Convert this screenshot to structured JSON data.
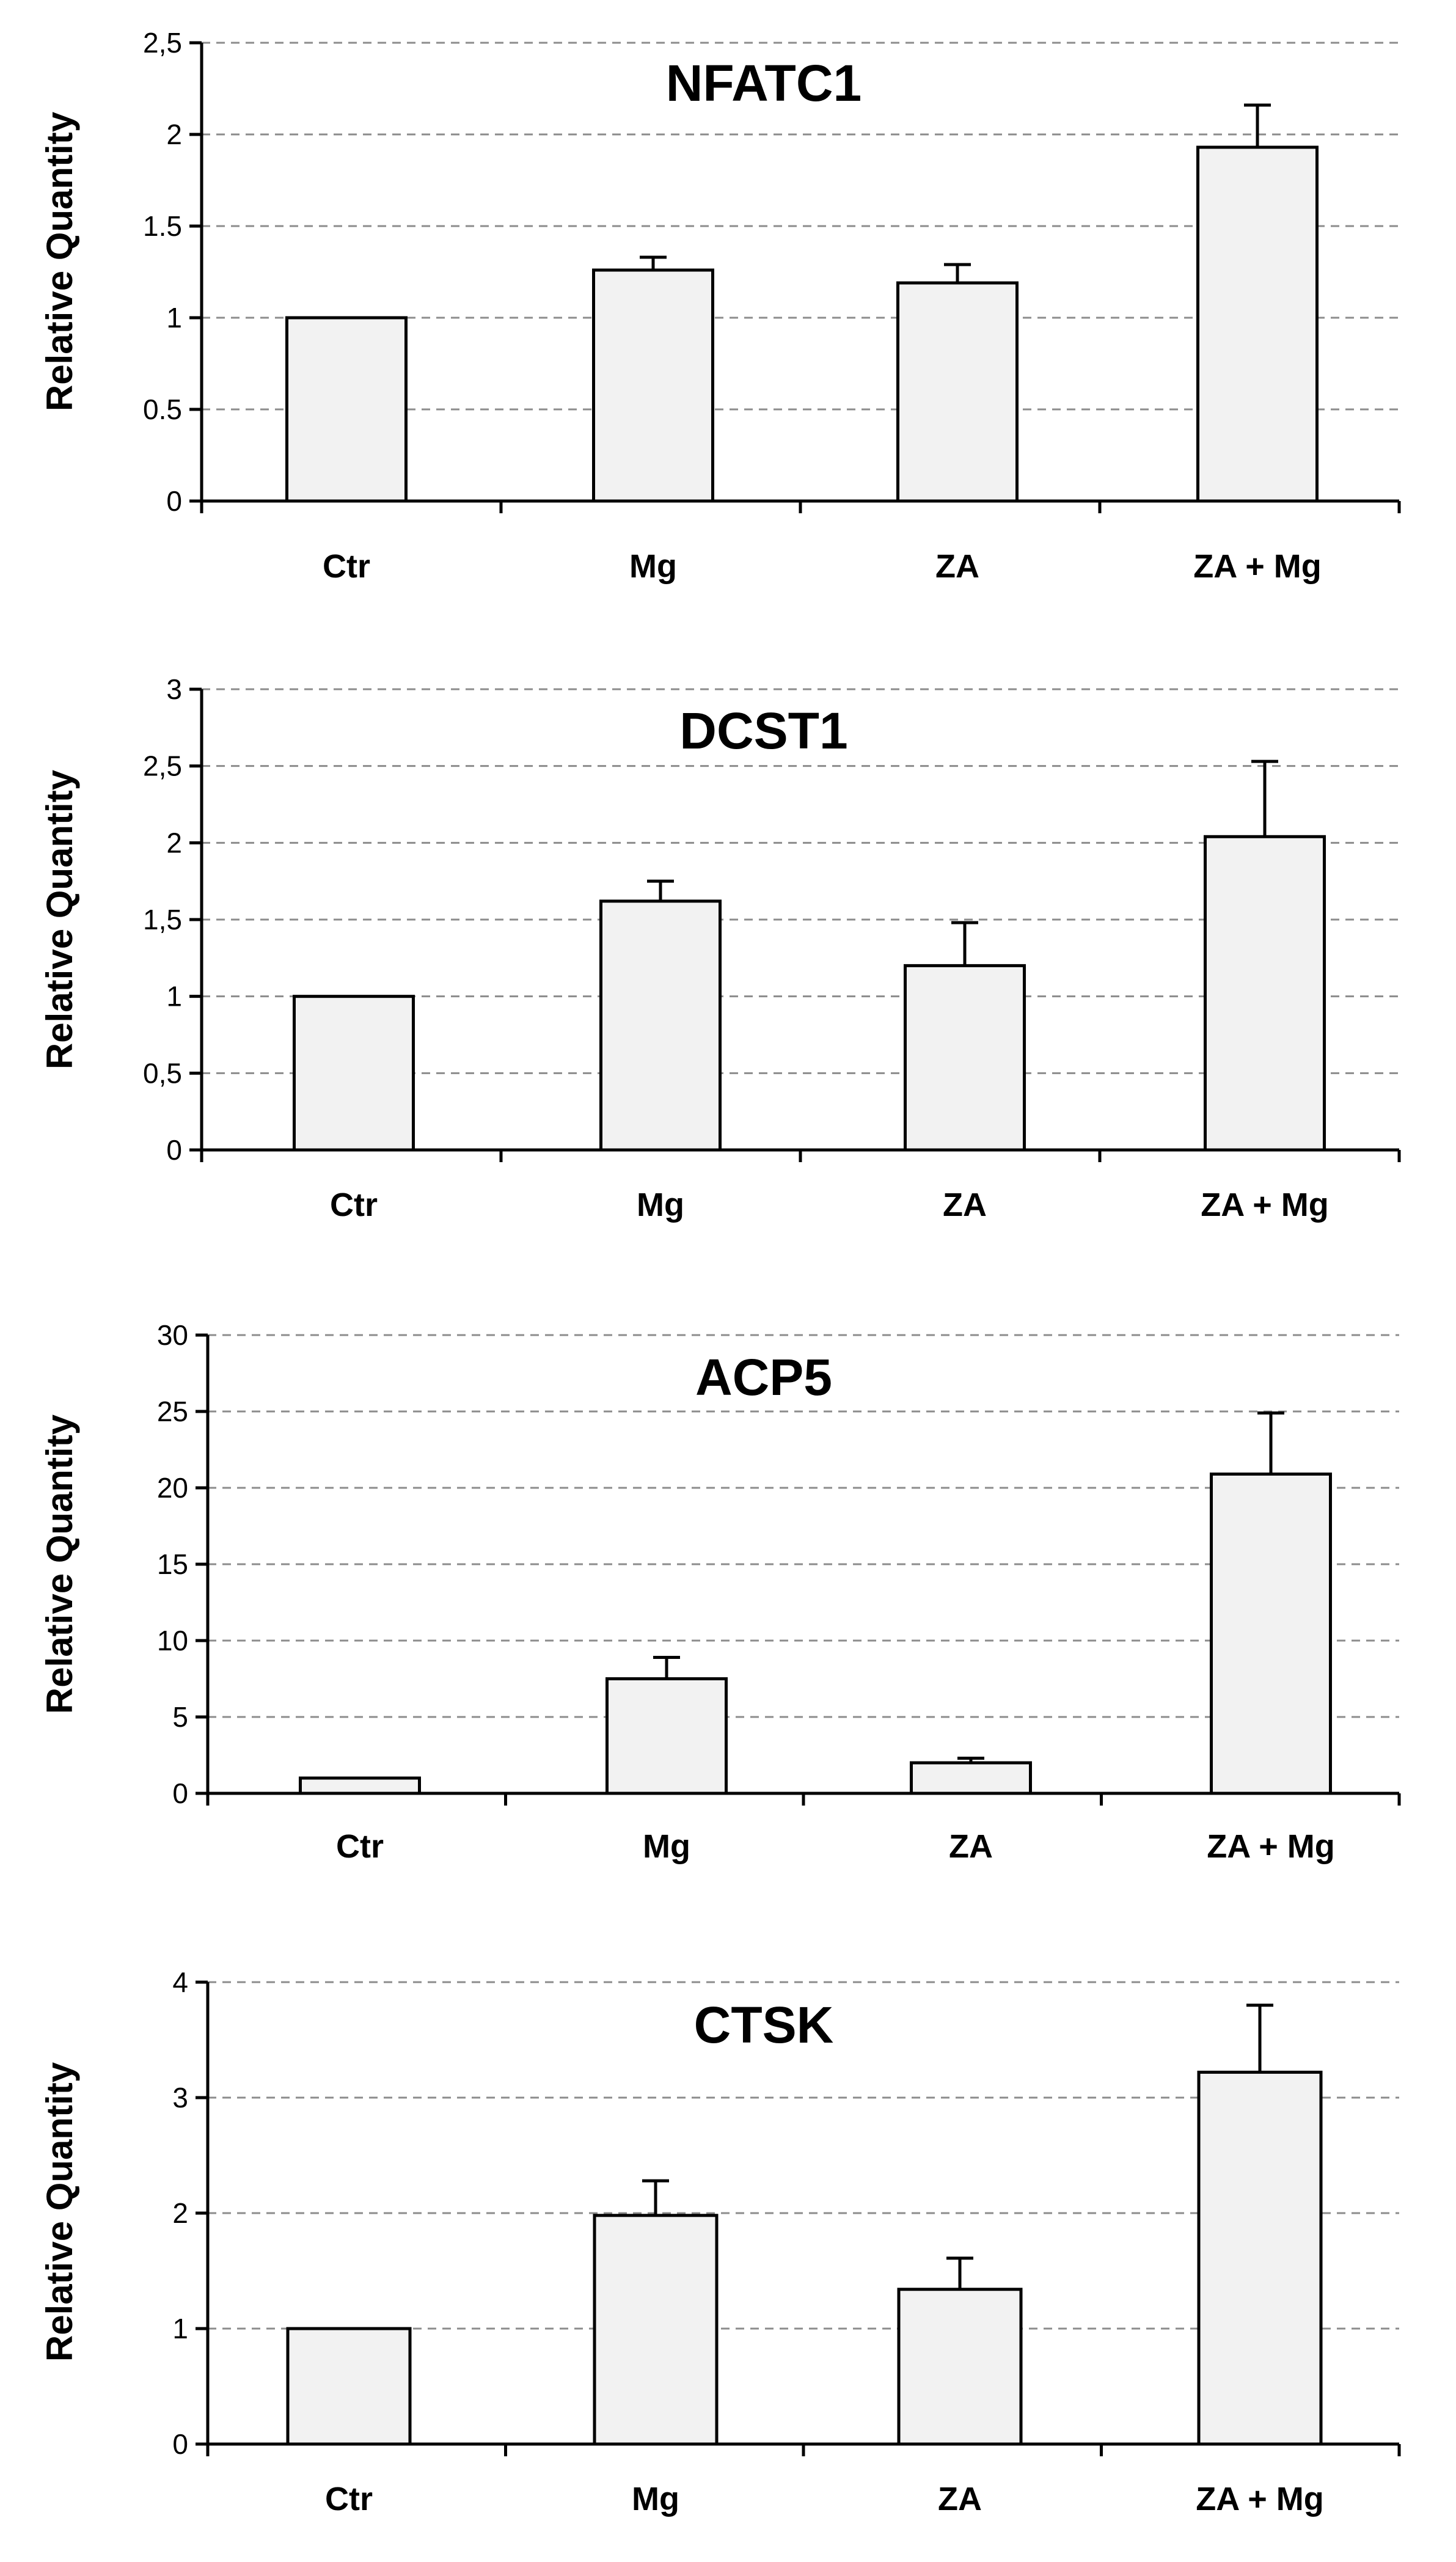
{
  "chart_data": [
    {
      "type": "bar",
      "title": "NFATC1",
      "ylabel": "Relative Quantity",
      "xlabel": "",
      "categories": [
        "Ctr",
        "Mg",
        "ZA",
        "ZA + Mg"
      ],
      "values": [
        1.0,
        1.26,
        1.19,
        1.93
      ],
      "error": [
        0,
        0.07,
        0.1,
        0.23
      ],
      "ylim": [
        0,
        2.5
      ],
      "yticks": [
        0,
        0.5,
        1,
        1.5,
        2,
        2.5
      ],
      "ytick_labels": [
        "0",
        "0.5",
        "1",
        "1.5",
        "2",
        "2,5"
      ],
      "grid": true,
      "bar_color": "#f2f2f2"
    },
    {
      "type": "bar",
      "title": "DCST1",
      "ylabel": "Relative Quantity",
      "xlabel": "",
      "categories": [
        "Ctr",
        "Mg",
        "ZA",
        "ZA + Mg"
      ],
      "values": [
        1.0,
        1.62,
        1.2,
        2.04
      ],
      "error": [
        0,
        0.13,
        0.28,
        0.49
      ],
      "ylim": [
        0,
        3
      ],
      "yticks": [
        0,
        0.5,
        1,
        1.5,
        2,
        2.5,
        3
      ],
      "ytick_labels": [
        "0",
        "0,5",
        "1",
        "1,5",
        "2",
        "2,5",
        "3"
      ],
      "grid": true,
      "bar_color": "#f2f2f2"
    },
    {
      "type": "bar",
      "title": "ACP5",
      "ylabel": "Relative Quantity",
      "xlabel": "",
      "categories": [
        "Ctr",
        "Mg",
        "ZA",
        "ZA + Mg"
      ],
      "values": [
        1.0,
        7.5,
        2.0,
        20.9
      ],
      "error": [
        0,
        1.4,
        0.3,
        4.0
      ],
      "ylim": [
        0,
        30
      ],
      "yticks": [
        0,
        5,
        10,
        15,
        20,
        25,
        30
      ],
      "ytick_labels": [
        "0",
        "5",
        "10",
        "15",
        "20",
        "25",
        "30"
      ],
      "grid": true,
      "bar_color": "#f2f2f2"
    },
    {
      "type": "bar",
      "title": "CTSK",
      "ylabel": "Relative Quantity",
      "xlabel": "",
      "categories": [
        "Ctr",
        "Mg",
        "ZA",
        "ZA + Mg"
      ],
      "values": [
        1.0,
        1.98,
        1.34,
        3.22
      ],
      "error": [
        0,
        0.3,
        0.27,
        0.58
      ],
      "ylim": [
        0,
        4
      ],
      "yticks": [
        0,
        1,
        2,
        3,
        4
      ],
      "ytick_labels": [
        "0",
        "1",
        "2",
        "3",
        "4"
      ],
      "grid": true,
      "bar_color": "#f2f2f2"
    }
  ]
}
